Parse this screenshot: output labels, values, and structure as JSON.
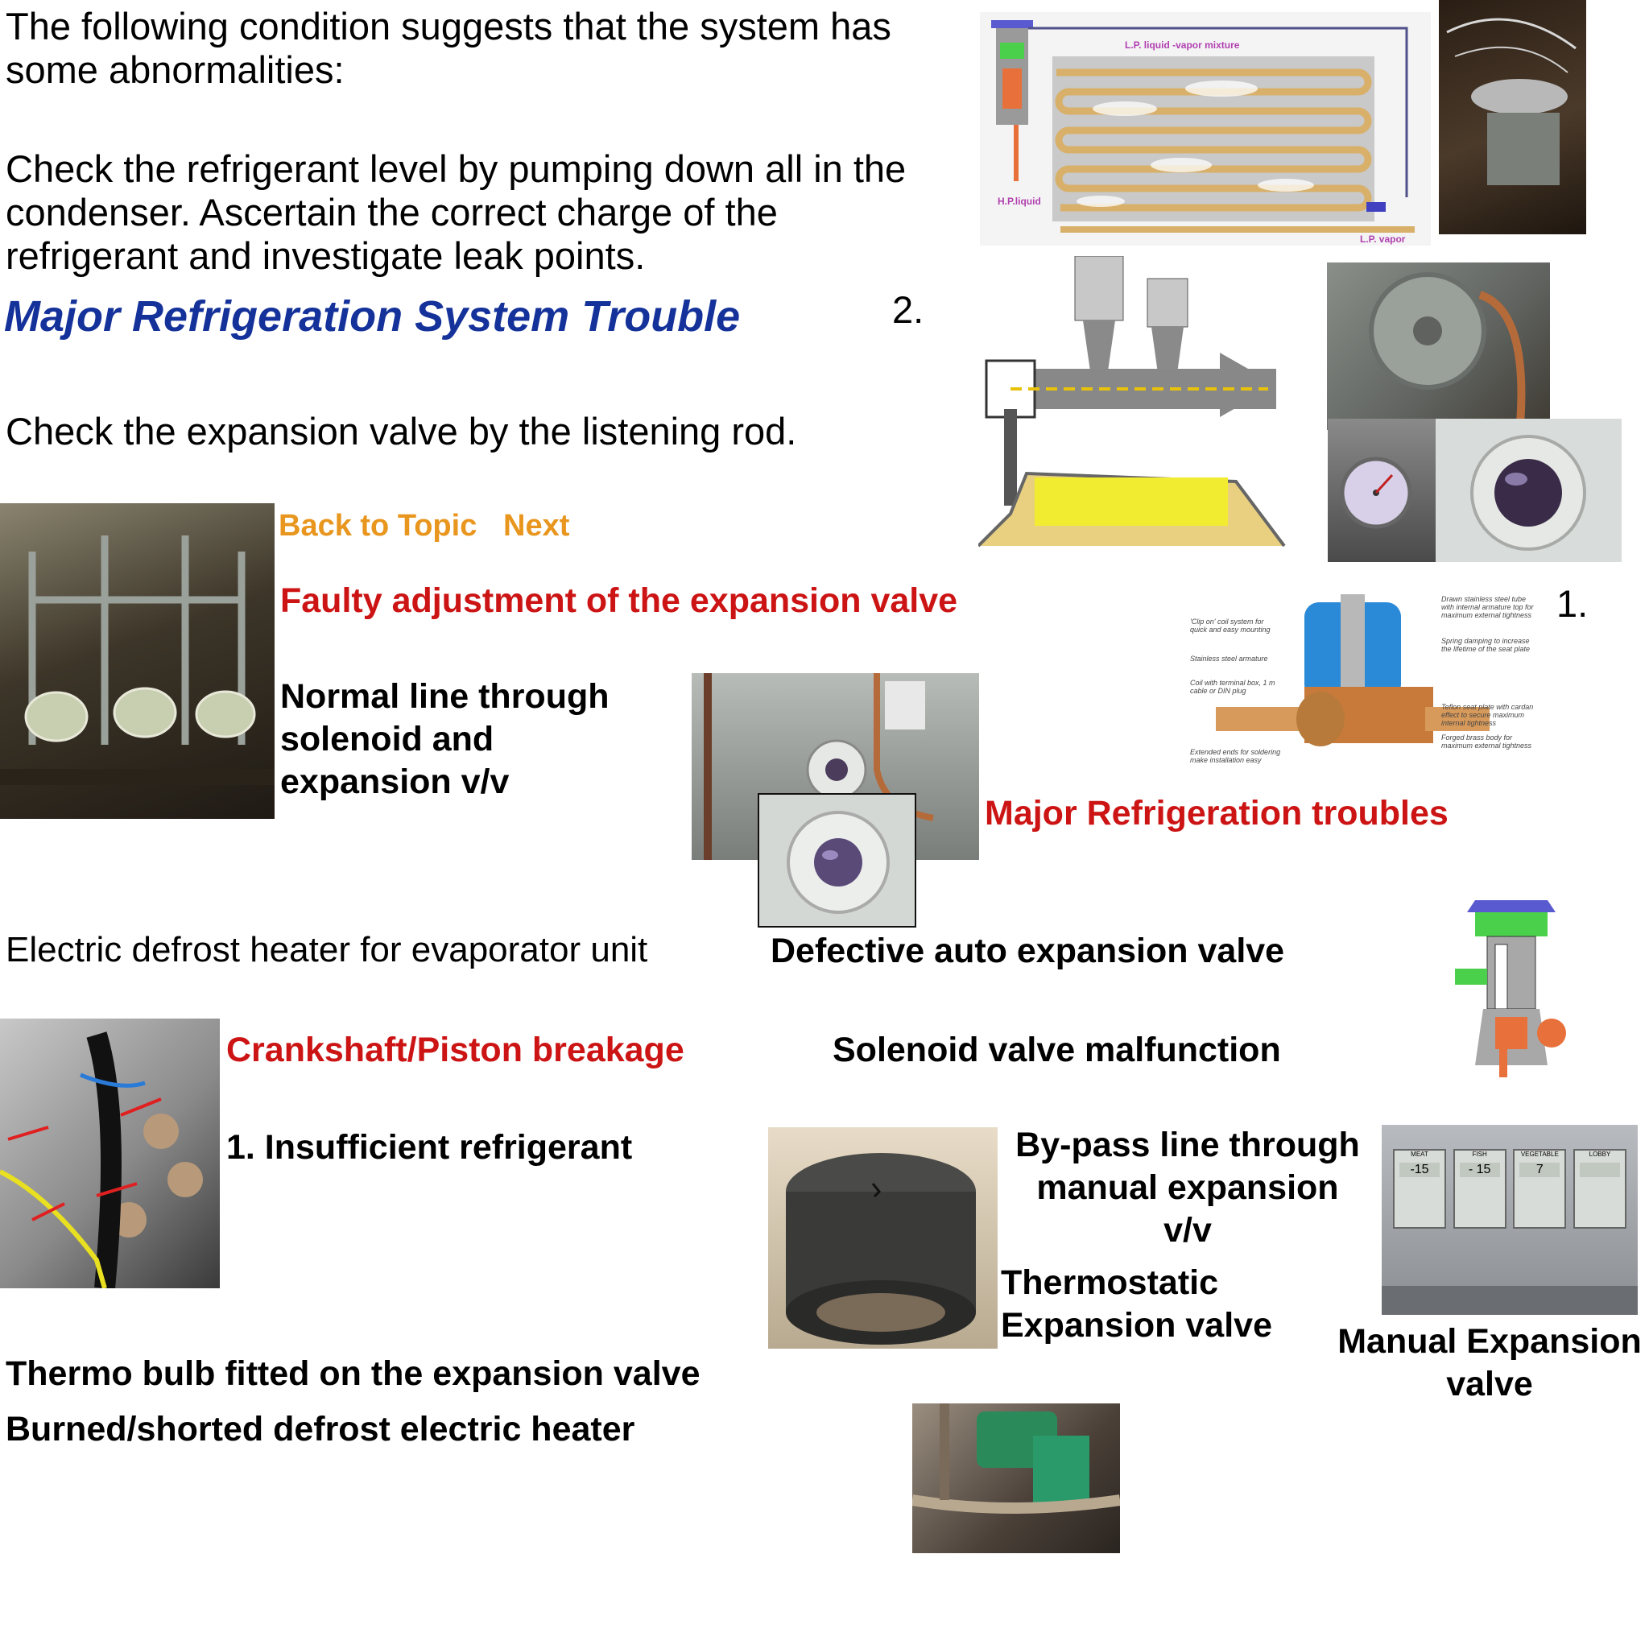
{
  "intro": {
    "line1": "The following condition suggests that the system has",
    "line2": "some abnormalities:"
  },
  "check_level": {
    "line1": "Check the refrigerant level by pumping down all in the",
    "line2": "condenser. Ascertain the correct charge of the",
    "line3": "refrigerant and investigate leak points."
  },
  "major_title": "Major Refrigeration System Trouble",
  "num_two": "2.",
  "num_one": "1.",
  "check_valve": "Check the expansion valve by the listening rod.",
  "nav": {
    "back": "Back to Topic",
    "next": "Next"
  },
  "faulty": "Faulty adjustment of the expansion valve",
  "normal_line": {
    "line1": "Normal line through",
    "line2": "solenoid and",
    "line3": "expansion v/v"
  },
  "major_troubles": "Major Refrigeration troubles",
  "defrost_heater_caption": "Electric defrost heater for evaporator unit",
  "defective_auto": "Defective auto expansion valve",
  "crankshaft": "Crankshaft/Piston breakage",
  "solenoid_malfunction": "Solenoid valve malfunction",
  "insufficient": "1. Insufficient refrigerant",
  "bypass": {
    "line1": "By-pass line through",
    "line2": "manual expansion v/v"
  },
  "thermostatic": {
    "line1": "Thermostatic",
    "line2": "Expansion valve"
  },
  "manual_exp": {
    "line1": "Manual Expansion",
    "line2": "valve"
  },
  "thermo_bulb": "Thermo bulb fitted on the expansion valve",
  "burned": "Burned/shorted defrost electric heater",
  "evap_diagram": {
    "lp_mix": "L.P. liquid -vapor mixture",
    "hp_liquid": "H.P.liquid",
    "lp_vapor": "L.P. vapor"
  },
  "solenoid_labels": {
    "a": "Drawn stainless steel tube with internal armature top for maximum external tightness",
    "b": "'Clip on' coil system for quick and easy mounting",
    "c": "Spring damping to increase the lifetime of the seat plate",
    "d": "Stainless steel armature",
    "e": "Coil with terminal box, 1 m cable or DIN plug",
    "f": "Teflon seat plate with cardan effect to secure maximum internal tightness",
    "g": "Forged brass body for maximum external tightness",
    "h": "Extended ends for soldering make installation easy"
  },
  "panel": {
    "labels": [
      "MEAT",
      "FISH",
      "VEGETABLE",
      "LOBBY"
    ],
    "readings": [
      "-15",
      "- 15",
      "7",
      ""
    ]
  }
}
